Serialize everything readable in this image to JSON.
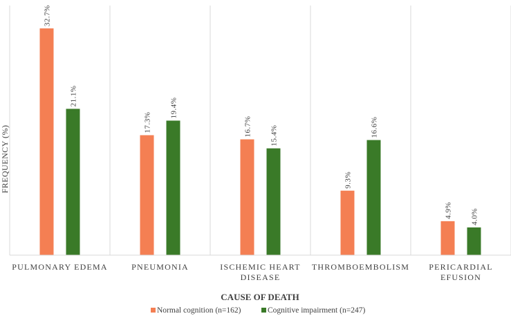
{
  "chart_data": {
    "type": "bar",
    "title": "",
    "xlabel": "CAUSE OF DEATH",
    "ylabel": "FREQUENCY (%)",
    "ylim": [
      0,
      35
    ],
    "grid": "vertical category separators",
    "legend_position": "bottom",
    "categories": [
      [
        "PULMONARY EDEMA"
      ],
      [
        "PNEUMONIA"
      ],
      [
        "ISCHEMIC HEART",
        "DISEASE"
      ],
      [
        "THROMBOEMBOLISM"
      ],
      [
        "PERICARDIAL",
        "EFUSION"
      ]
    ],
    "series": [
      {
        "name": "Normal cognition (n=162)",
        "color": "#f47f53",
        "values": [
          32.7,
          17.3,
          16.7,
          9.3,
          4.9
        ],
        "labels": [
          "32.7%",
          "17.3%",
          "16.7%",
          "9.3%",
          "4.9%"
        ]
      },
      {
        "name": "Cognitive impairment (n=247)",
        "color": "#3a7a28",
        "values": [
          21.1,
          19.4,
          15.4,
          16.6,
          4.0
        ],
        "labels": [
          "21.1%",
          "19.4%",
          "15.4%",
          "16.6%",
          "4.0%"
        ]
      }
    ]
  }
}
